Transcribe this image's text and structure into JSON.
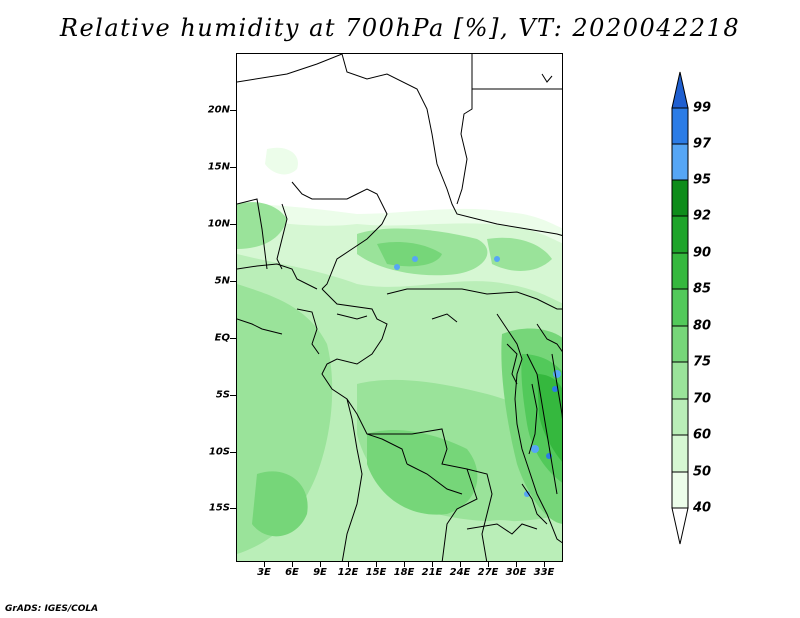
{
  "title": "Relative humidity at 700hPa [%], VT: 2020042218",
  "credit": "GrADS: IGES/COLA",
  "map": {
    "lat_labels": [
      "20N",
      "15N",
      "10N",
      "5N",
      "EQ",
      "5S",
      "10S",
      "15S"
    ],
    "lat_values": [
      20,
      15,
      10,
      5,
      0,
      -5,
      -10,
      -15
    ],
    "lon_labels": [
      "3E",
      "6E",
      "9E",
      "12E",
      "15E",
      "18E",
      "21E",
      "24E",
      "27E",
      "30E",
      "33E"
    ],
    "lon_values": [
      3,
      6,
      9,
      12,
      15,
      18,
      21,
      24,
      27,
      30,
      33
    ],
    "lat_range": [
      -19,
      24
    ],
    "lon_range": [
      0,
      35
    ]
  },
  "colorbar": {
    "labels": [
      "99",
      "97",
      "95",
      "92",
      "90",
      "85",
      "80",
      "75",
      "70",
      "60",
      "50",
      "40"
    ],
    "colors": [
      "#1f5fd0",
      "#2b7ce6",
      "#56a6f5",
      "#0d8c1a",
      "#1ea42a",
      "#35b83e",
      "#52c95a",
      "#76d679",
      "#9ae39a",
      "#baeeb8",
      "#d6f7d3",
      "#ecfdea",
      "#ffffff"
    ]
  }
}
